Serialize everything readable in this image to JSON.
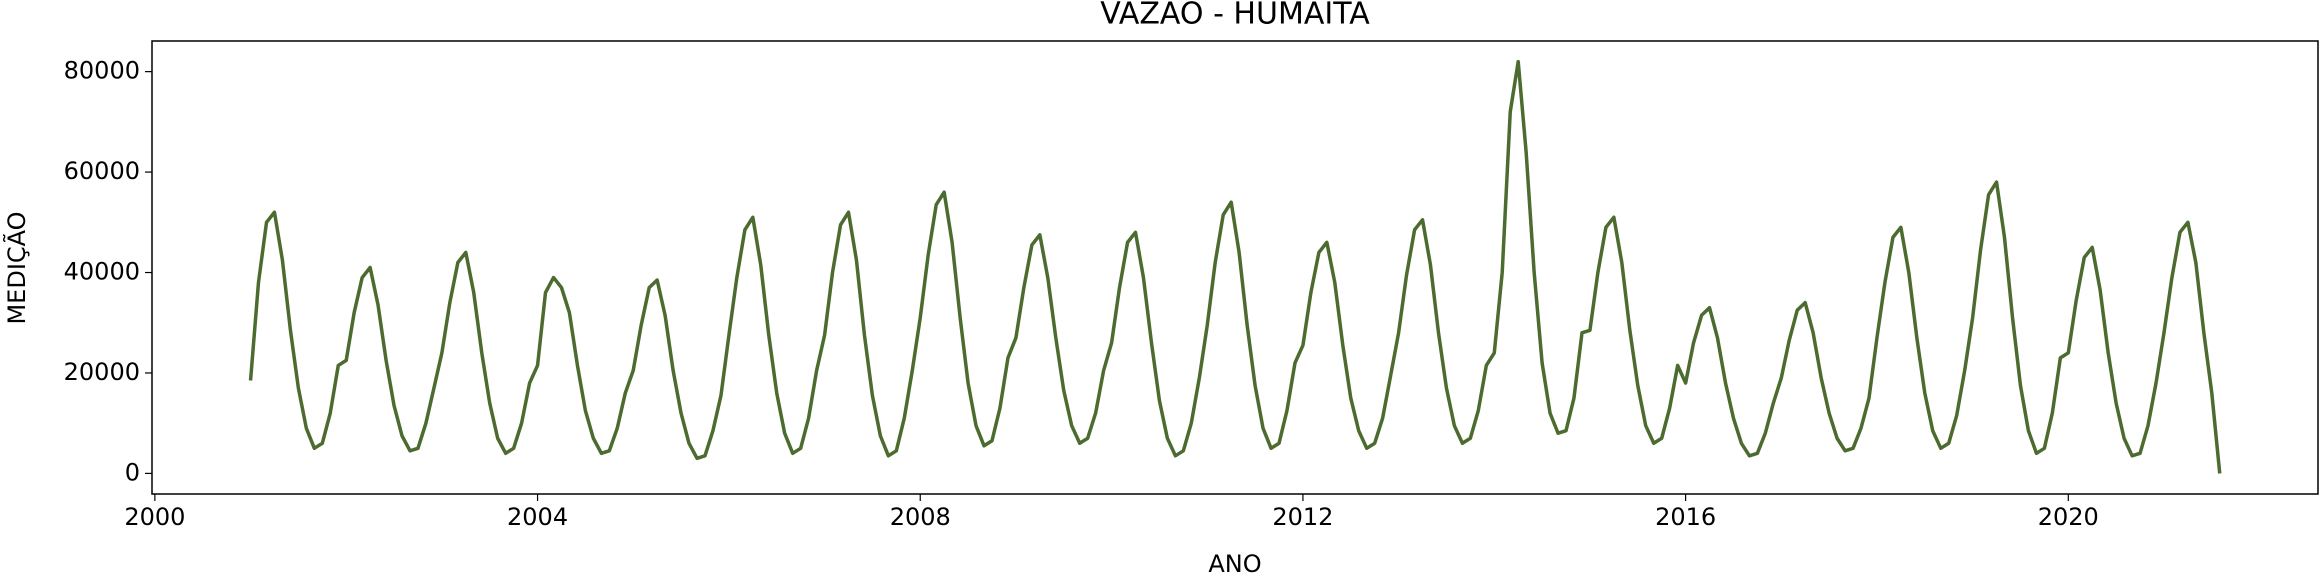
{
  "chart_data": {
    "type": "line",
    "title": "VAZAO - HUMAITA",
    "x_label": "ANO",
    "y_label": "MEDIÇÃO",
    "xlim": [
      1999.97,
      2022.61
    ],
    "xticks": [
      2000,
      2004,
      2008,
      2012,
      2016,
      2020
    ],
    "ylim": [
      -4100,
      86100
    ],
    "yticks": [
      0,
      20000,
      40000,
      60000,
      80000
    ],
    "grid": false,
    "x": [
      2001,
      2001.083,
      2001.167,
      2001.25,
      2001.333,
      2001.417,
      2001.5,
      2001.583,
      2001.667,
      2001.75,
      2001.833,
      2001.917,
      2002,
      2002.083,
      2002.167,
      2002.25,
      2002.333,
      2002.417,
      2002.5,
      2002.583,
      2002.667,
      2002.75,
      2002.833,
      2002.917,
      2003,
      2003.083,
      2003.167,
      2003.25,
      2003.333,
      2003.417,
      2003.5,
      2003.583,
      2003.667,
      2003.75,
      2003.833,
      2003.917,
      2004,
      2004.083,
      2004.167,
      2004.25,
      2004.333,
      2004.417,
      2004.5,
      2004.583,
      2004.667,
      2004.75,
      2004.833,
      2004.917,
      2005,
      2005.083,
      2005.167,
      2005.25,
      2005.333,
      2005.417,
      2005.5,
      2005.583,
      2005.667,
      2005.75,
      2005.833,
      2005.917,
      2006,
      2006.083,
      2006.167,
      2006.25,
      2006.333,
      2006.417,
      2006.5,
      2006.583,
      2006.667,
      2006.75,
      2006.833,
      2006.917,
      2007,
      2007.083,
      2007.167,
      2007.25,
      2007.333,
      2007.417,
      2007.5,
      2007.583,
      2007.667,
      2007.75,
      2007.833,
      2007.917,
      2008,
      2008.083,
      2008.167,
      2008.25,
      2008.333,
      2008.417,
      2008.5,
      2008.583,
      2008.667,
      2008.75,
      2008.833,
      2008.917,
      2009,
      2009.083,
      2009.167,
      2009.25,
      2009.333,
      2009.417,
      2009.5,
      2009.583,
      2009.667,
      2009.75,
      2009.833,
      2009.917,
      2010,
      2010.083,
      2010.167,
      2010.25,
      2010.333,
      2010.417,
      2010.5,
      2010.583,
      2010.667,
      2010.75,
      2010.833,
      2010.917,
      2011,
      2011.083,
      2011.167,
      2011.25,
      2011.333,
      2011.417,
      2011.5,
      2011.583,
      2011.667,
      2011.75,
      2011.833,
      2011.917,
      2012,
      2012.083,
      2012.167,
      2012.25,
      2012.333,
      2012.417,
      2012.5,
      2012.583,
      2012.667,
      2012.75,
      2012.833,
      2012.917,
      2013,
      2013.083,
      2013.167,
      2013.25,
      2013.333,
      2013.417,
      2013.5,
      2013.583,
      2013.667,
      2013.75,
      2013.833,
      2013.917,
      2014,
      2014.083,
      2014.167,
      2014.25,
      2014.333,
      2014.417,
      2014.5,
      2014.583,
      2014.667,
      2014.75,
      2014.833,
      2014.917,
      2015,
      2015.083,
      2015.167,
      2015.25,
      2015.333,
      2015.417,
      2015.5,
      2015.583,
      2015.667,
      2015.75,
      2015.833,
      2015.917,
      2016,
      2016.083,
      2016.167,
      2016.25,
      2016.333,
      2016.417,
      2016.5,
      2016.583,
      2016.667,
      2016.75,
      2016.833,
      2016.917,
      2017,
      2017.083,
      2017.167,
      2017.25,
      2017.333,
      2017.417,
      2017.5,
      2017.583,
      2017.667,
      2017.75,
      2017.833,
      2017.917,
      2018,
      2018.083,
      2018.167,
      2018.25,
      2018.333,
      2018.417,
      2018.5,
      2018.583,
      2018.667,
      2018.75,
      2018.833,
      2018.917,
      2019,
      2019.083,
      2019.167,
      2019.25,
      2019.333,
      2019.417,
      2019.5,
      2019.583,
      2019.667,
      2019.75,
      2019.833,
      2019.917,
      2020,
      2020.083,
      2020.167,
      2020.25,
      2020.333,
      2020.417,
      2020.5,
      2020.583,
      2020.667,
      2020.75,
      2020.833,
      2020.917,
      2021,
      2021.083,
      2021.167,
      2021.25,
      2021.333,
      2021.417,
      2021.5,
      2021.583
    ],
    "series": [
      {
        "name": "VAZAO",
        "color": "#4b6b2f",
        "values": [
          18500,
          38000,
          50000,
          52000,
          42500,
          28500,
          17000,
          9000,
          5000,
          6000,
          12000,
          21500,
          22500,
          32000,
          39000,
          41000,
          33500,
          22500,
          13500,
          7500,
          4500,
          5000,
          10000,
          17000,
          24000,
          34000,
          42000,
          44000,
          36000,
          24000,
          14000,
          7000,
          4000,
          5000,
          10000,
          18000,
          21500,
          36000,
          39000,
          37000,
          32000,
          21500,
          12500,
          7000,
          4000,
          4500,
          9000,
          16000,
          20500,
          29500,
          37000,
          38500,
          31500,
          20500,
          12000,
          6000,
          3000,
          3500,
          8500,
          15500,
          27500,
          39000,
          48500,
          51000,
          41500,
          27500,
          16000,
          8000,
          4000,
          5000,
          11000,
          20500,
          27500,
          40000,
          49500,
          52000,
          42500,
          27500,
          15500,
          7500,
          3500,
          4500,
          11000,
          20500,
          31000,
          43500,
          53500,
          56000,
          46000,
          31000,
          18000,
          9500,
          5500,
          6500,
          13000,
          23000,
          27000,
          37000,
          45500,
          47500,
          39000,
          27000,
          16500,
          9500,
          6000,
          7000,
          12000,
          20500,
          26000,
          37000,
          46000,
          48000,
          39000,
          26000,
          14500,
          7000,
          3500,
          4500,
          10000,
          19000,
          29500,
          42000,
          51500,
          54000,
          44000,
          29500,
          17500,
          9000,
          5000,
          6000,
          12500,
          22000,
          25500,
          36000,
          44000,
          46000,
          38000,
          25500,
          15000,
          8500,
          5000,
          6000,
          11000,
          19500,
          28000,
          39500,
          48500,
          50500,
          41500,
          28000,
          17000,
          9500,
          6000,
          7000,
          12500,
          21500,
          24000,
          40000,
          72000,
          82000,
          64000,
          40000,
          22000,
          12000,
          8000,
          8500,
          15000,
          28000,
          28500,
          40000,
          49000,
          51000,
          42000,
          28500,
          17500,
          9500,
          6000,
          7000,
          13000,
          21500,
          18000,
          26000,
          31500,
          33000,
          27000,
          18000,
          11000,
          6000,
          3500,
          4000,
          8000,
          14000,
          19000,
          26500,
          32500,
          34000,
          28000,
          19000,
          12000,
          7000,
          4500,
          5000,
          9000,
          15000,
          27000,
          38000,
          47000,
          49000,
          40000,
          27000,
          16000,
          8500,
          5000,
          6000,
          11500,
          20500,
          31000,
          44500,
          55500,
          58000,
          47000,
          31000,
          17500,
          8500,
          4000,
          5000,
          12000,
          23000,
          24000,
          34500,
          43000,
          45000,
          36500,
          24000,
          14000,
          7000,
          3500,
          4000,
          9500,
          18000,
          28000,
          39000,
          48000,
          50000,
          42000,
          28000,
          16000,
          0
        ]
      }
    ]
  }
}
